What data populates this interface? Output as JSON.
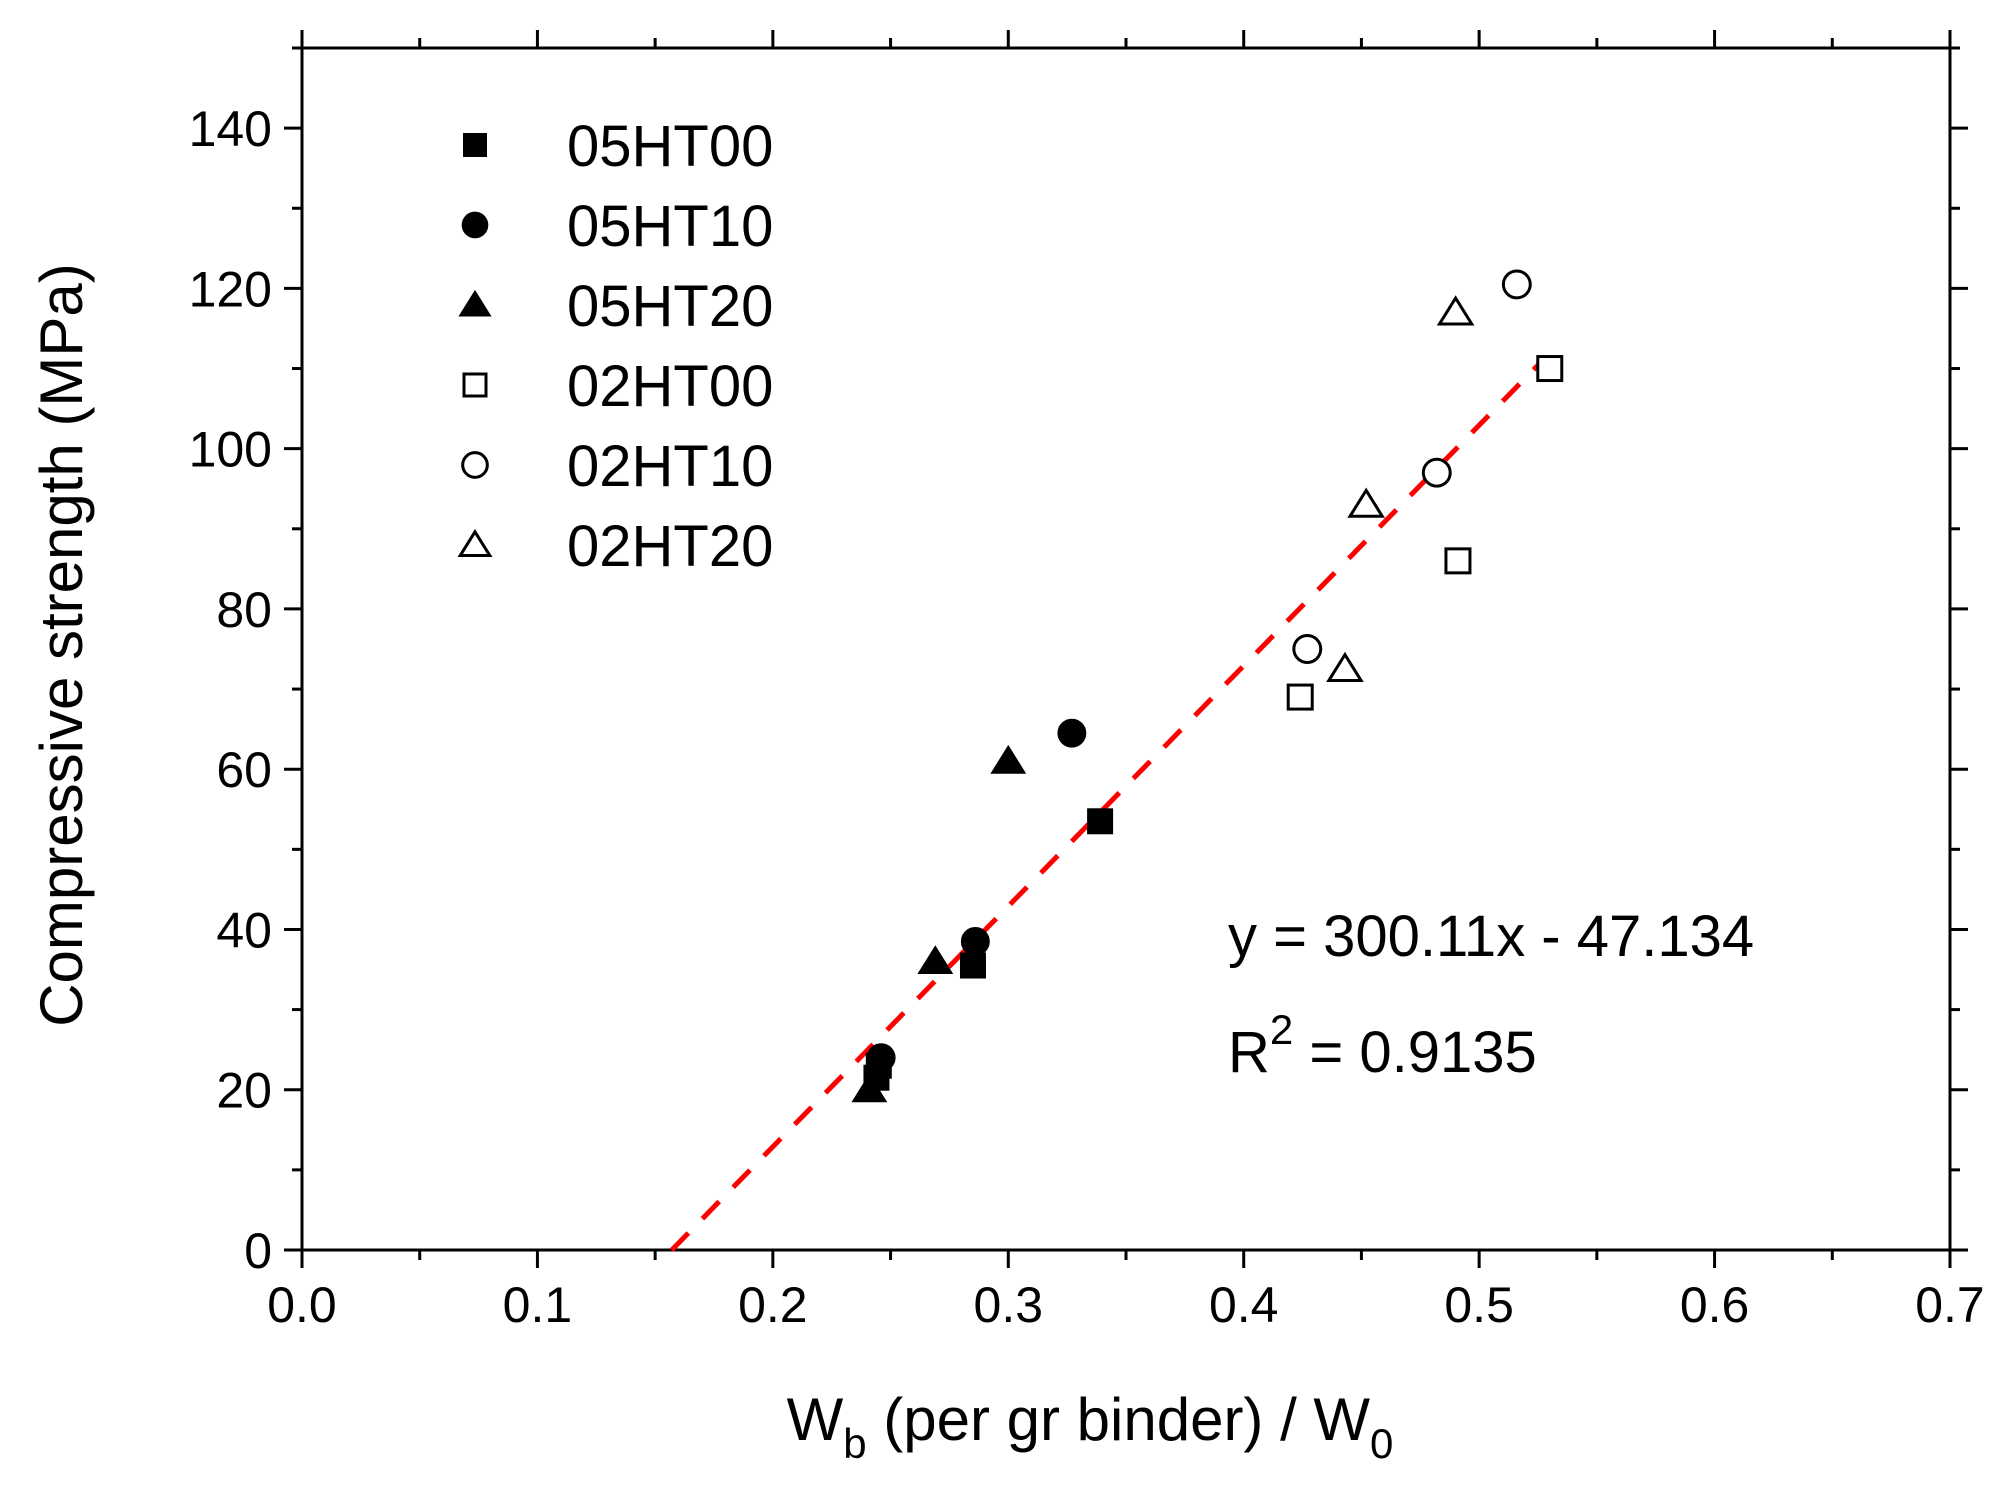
{
  "chart_data": {
    "type": "scatter",
    "title": "",
    "xlabel": {
      "main": "W",
      "sub": "b",
      "rest": " (per gr binder) / W",
      "sub2": "0"
    },
    "ylabel": "Compressive strength (MPa)",
    "xlim": [
      0.0,
      0.7
    ],
    "ylim": [
      0,
      150
    ],
    "x_major_ticks": [
      0.0,
      0.1,
      0.2,
      0.3,
      0.4,
      0.5,
      0.6,
      0.7
    ],
    "x_tick_labels": [
      "0.0",
      "0.1",
      "0.2",
      "0.3",
      "0.4",
      "0.5",
      "0.6",
      "0.7"
    ],
    "x_minor_step": 0.05,
    "y_major_ticks": [
      0,
      20,
      40,
      60,
      80,
      100,
      120,
      140
    ],
    "y_tick_labels": [
      "0",
      "20",
      "40",
      "60",
      "80",
      "100",
      "120",
      "140"
    ],
    "y_minor_step": 10,
    "grid": false,
    "legend_position": "top-left",
    "series": [
      {
        "name": "05HT00",
        "marker": "square",
        "filled": true,
        "points": [
          [
            0.244,
            21.5
          ],
          [
            0.245,
            23.0
          ],
          [
            0.285,
            35.5
          ],
          [
            0.339,
            53.5
          ]
        ]
      },
      {
        "name": "05HT10",
        "marker": "circle",
        "filled": true,
        "points": [
          [
            0.246,
            24.0
          ],
          [
            0.286,
            38.5
          ],
          [
            0.327,
            64.5
          ]
        ]
      },
      {
        "name": "05HT20",
        "marker": "triangle",
        "filled": true,
        "points": [
          [
            0.241,
            20.0
          ],
          [
            0.269,
            36.0
          ],
          [
            0.3,
            61.0
          ]
        ]
      },
      {
        "name": "02HT00",
        "marker": "square",
        "filled": false,
        "points": [
          [
            0.424,
            69.0
          ],
          [
            0.491,
            86.0
          ],
          [
            0.53,
            110.0
          ]
        ]
      },
      {
        "name": "02HT10",
        "marker": "circle",
        "filled": false,
        "points": [
          [
            0.427,
            75.0
          ],
          [
            0.482,
            97.0
          ],
          [
            0.516,
            120.5
          ]
        ]
      },
      {
        "name": "02HT20",
        "marker": "triangle",
        "filled": false,
        "points": [
          [
            0.443,
            72.5
          ],
          [
            0.452,
            93.0
          ],
          [
            0.49,
            117.0
          ]
        ]
      }
    ],
    "fit_line": {
      "slope": 300.11,
      "intercept": -47.134,
      "x_range": [
        0.157,
        0.527
      ],
      "color": "#ff0000",
      "style": "dashed"
    },
    "annotations": {
      "equation": "y = 300.11x - 47.134",
      "r2_main": "R",
      "r2_sup": "2",
      "r2_rest": " = 0.9135"
    },
    "colors": {
      "axis": "#000000",
      "fit": "#ff0000",
      "marker": "#000000"
    }
  }
}
